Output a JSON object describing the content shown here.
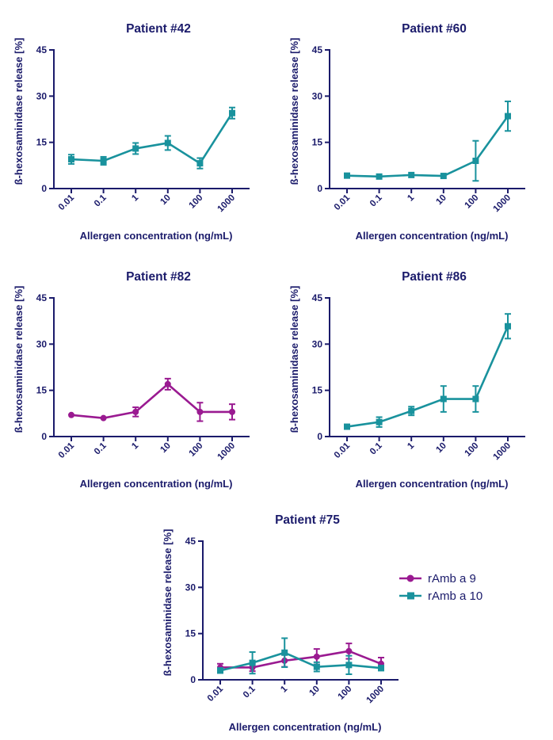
{
  "colors": {
    "rAmb9": "#9a1a91",
    "rAmb10": "#19929d",
    "axis": "#1b1b6b"
  },
  "legend": [
    {
      "name": "rAmb a 9",
      "color": "#9a1a91",
      "marker": "circle"
    },
    {
      "name": "rAmb a 10",
      "color": "#19929d",
      "marker": "square"
    }
  ],
  "chart_data": [
    {
      "type": "line",
      "title": "Patient #42",
      "xlabel": "Allergen concentration (ng/mL)",
      "ylabel": "ß-hexosaminidase release [%]",
      "categories": [
        "0.01",
        "0.1",
        "1",
        "10",
        "100",
        "1000"
      ],
      "yticks": [
        "0",
        "15",
        "30",
        "45"
      ],
      "ylim": [
        0,
        45
      ],
      "series": [
        {
          "name": "rAmb a 10",
          "color": "#19929d",
          "marker": "square",
          "values": [
            9.5,
            9.0,
            13.0,
            14.8,
            8.2,
            24.5
          ],
          "errors": [
            1.5,
            1.3,
            1.8,
            2.3,
            1.7,
            1.8
          ]
        }
      ]
    },
    {
      "type": "line",
      "title": "Patient #60",
      "xlabel": "Allergen concentration (ng/mL)",
      "ylabel": "ß-hexosaminidase release [%]",
      "categories": [
        "0.01",
        "0.1",
        "1",
        "10",
        "100",
        "1000"
      ],
      "yticks": [
        "0",
        "15",
        "30",
        "45"
      ],
      "ylim": [
        0,
        45
      ],
      "series": [
        {
          "name": "rAmb a 10",
          "color": "#19929d",
          "marker": "square",
          "values": [
            4.2,
            3.9,
            4.4,
            4.1,
            9.0,
            23.5
          ],
          "errors": [
            0,
            0,
            0,
            0,
            6.5,
            4.8
          ]
        }
      ]
    },
    {
      "type": "line",
      "title": "Patient #82",
      "xlabel": "Allergen concentration (ng/mL)",
      "ylabel": "ß-hexosaminidase release [%]",
      "categories": [
        "0.01",
        "0.1",
        "1",
        "10",
        "100",
        "1000"
      ],
      "yticks": [
        "0",
        "15",
        "30",
        "45"
      ],
      "ylim": [
        0,
        45
      ],
      "series": [
        {
          "name": "rAmb a 9",
          "color": "#9a1a91",
          "marker": "circle",
          "values": [
            7.0,
            6.0,
            8.0,
            17.0,
            8.0,
            8.0
          ],
          "errors": [
            0,
            0,
            1.5,
            1.8,
            3.0,
            2.5
          ]
        }
      ]
    },
    {
      "type": "line",
      "title": "Patient #86",
      "xlabel": "Allergen concentration (ng/mL)",
      "ylabel": "ß-hexosaminidase release [%]",
      "categories": [
        "0.01",
        "0.1",
        "1",
        "10",
        "100",
        "1000"
      ],
      "yticks": [
        "0",
        "15",
        "30",
        "45"
      ],
      "ylim": [
        0,
        45
      ],
      "series": [
        {
          "name": "rAmb a 10",
          "color": "#19929d",
          "marker": "square",
          "values": [
            3.2,
            4.7,
            8.3,
            12.2,
            12.2,
            35.8
          ],
          "errors": [
            0,
            1.6,
            1.4,
            4.2,
            4.2,
            4.0
          ]
        }
      ]
    },
    {
      "type": "line",
      "title": "Patient #75",
      "xlabel": "Allergen concentration (ng/mL)",
      "ylabel": "ß-hexosaminidase release [%]",
      "categories": [
        "0.01",
        "0.1",
        "1",
        "10",
        "100",
        "1000"
      ],
      "yticks": [
        "0",
        "15",
        "30",
        "45"
      ],
      "ylim": [
        0,
        45
      ],
      "legend": "right",
      "series": [
        {
          "name": "rAmb a 9",
          "color": "#9a1a91",
          "marker": "circle",
          "values": [
            4.0,
            4.0,
            6.2,
            7.5,
            9.3,
            5.2
          ],
          "errors": [
            1.2,
            1.2,
            2.0,
            2.5,
            2.5,
            2.0
          ]
        },
        {
          "name": "rAmb a 10",
          "color": "#19929d",
          "marker": "square",
          "values": [
            3.0,
            5.5,
            8.8,
            4.2,
            4.8,
            3.8
          ],
          "errors": [
            0.8,
            3.5,
            4.7,
            1.5,
            3.0,
            0.8
          ]
        }
      ]
    }
  ]
}
